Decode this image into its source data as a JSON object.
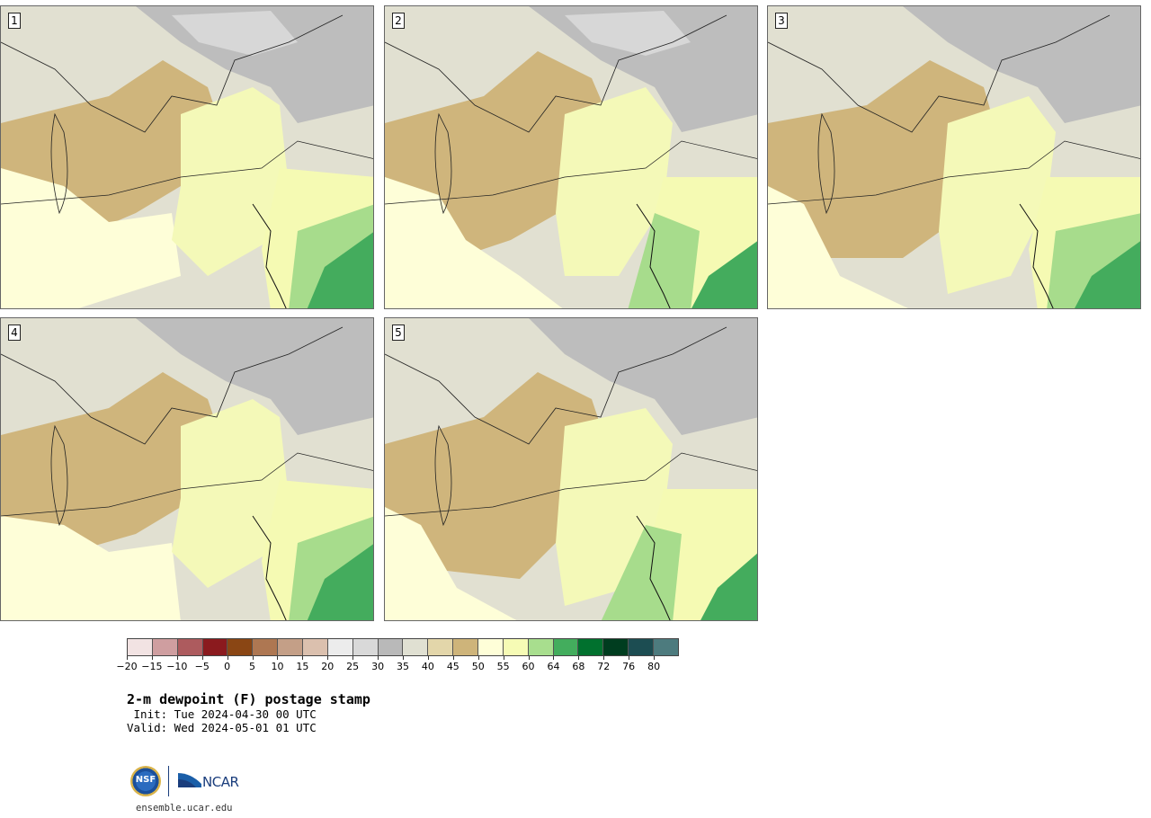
{
  "panels": [
    {
      "label": "1"
    },
    {
      "label": "2"
    },
    {
      "label": "3"
    },
    {
      "label": "4"
    },
    {
      "label": "5"
    }
  ],
  "colorbar": {
    "colors": [
      "#f2e3e3",
      "#cf9ea0",
      "#ad5b5e",
      "#8b1a1e",
      "#8a4614",
      "#ae7752",
      "#c49f87",
      "#dbc0ae",
      "#ececec",
      "#d9d9d9",
      "#b9b9b9",
      "#e0e0d2",
      "#e3d6aa",
      "#ceb47a",
      "#fefed8",
      "#f6fbb5",
      "#a8de8e",
      "#43ad5d",
      "#01712e",
      "#003d1f",
      "#1c4d52",
      "#4d7b7e"
    ],
    "tick_labels": [
      "−20",
      "−15",
      "−10",
      "−5",
      "0",
      "5",
      "10",
      "15",
      "20",
      "25",
      "30",
      "35",
      "40",
      "45",
      "50",
      "55",
      "60",
      "64",
      "68",
      "72",
      "76",
      "80"
    ]
  },
  "title": "2-m dewpoint (F) postage stamp",
  "init": " Init: Tue 2024-04-30 00 UTC",
  "valid": "Valid: Wed 2024-05-01 01 UTC",
  "logo": {
    "nsf": "NSF",
    "ncar": "NCAR"
  },
  "url": "ensemble.ucar.edu"
}
